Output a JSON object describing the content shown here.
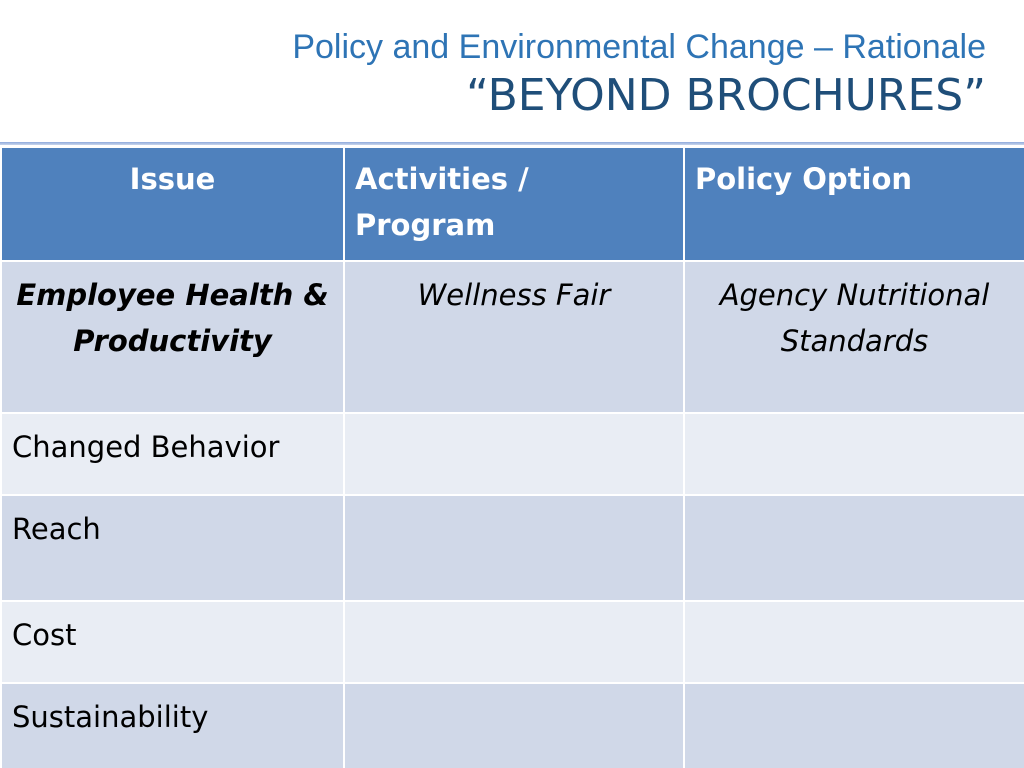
{
  "title": {
    "line1": "Policy and Environmental Change – Rationale",
    "line2": "“BEYOND BROCHURES”"
  },
  "table": {
    "headers": [
      "Issue",
      "Activities / Program",
      "Policy Option"
    ],
    "rows": [
      [
        "Employee Health & Productivity",
        "Wellness Fair",
        "Agency Nutritional Standards"
      ],
      [
        "Changed Behavior",
        "",
        ""
      ],
      [
        "Reach",
        "",
        ""
      ],
      [
        "Cost",
        "",
        ""
      ],
      [
        "Sustainability",
        "",
        ""
      ]
    ]
  },
  "colors": {
    "title_primary": "#2e74b5",
    "title_secondary": "#1f4e79",
    "header_fill": "#4f81bd",
    "row_dark": "#d0d8e8",
    "row_light": "#e9edf4"
  }
}
